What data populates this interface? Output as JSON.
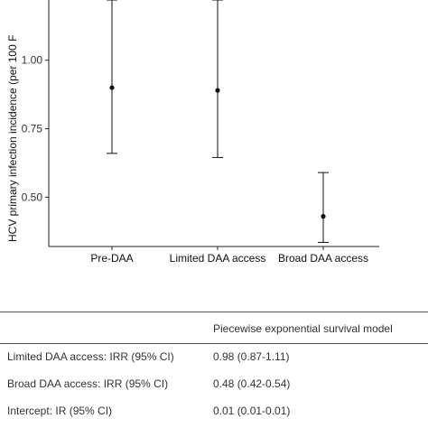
{
  "chart_data": {
    "type": "scatter",
    "subtype": "point-with-error-bars",
    "ylabel": "HCV primary infection incidence (per 100 F",
    "ylim": [
      0.32,
      1.22
    ],
    "yticks": [
      "0.50",
      "0.75",
      "1.00"
    ],
    "ytick_values": [
      0.5,
      0.75,
      1.0
    ],
    "categories": [
      "Pre-DAA",
      "Limited DAA access",
      "Broad DAA access"
    ],
    "points": [
      {
        "category": "Pre-DAA",
        "estimate": 0.9,
        "lower": 0.66,
        "upper": 1.22
      },
      {
        "category": "Limited DAA access",
        "estimate": 0.89,
        "lower": 0.645,
        "upper": 1.22
      },
      {
        "category": "Broad DAA access",
        "estimate": 0.43,
        "lower": 0.335,
        "upper": 0.59
      }
    ],
    "grid": false,
    "legend": "none"
  },
  "table": {
    "header": "Piecewise exponential survival model",
    "rows": [
      {
        "label": "Limited DAA access: IRR (95% CI)",
        "value": "0.98 (0.87-1.11)"
      },
      {
        "label": "Broad DAA access: IRR (95% CI)",
        "value": "0.48 (0.42-0.54)"
      },
      {
        "label": "Intercept: IR (95% CI)",
        "value": "0.01 (0.01-0.01)"
      }
    ]
  },
  "colors": {
    "marks": "#111111",
    "axis": "#222222"
  }
}
